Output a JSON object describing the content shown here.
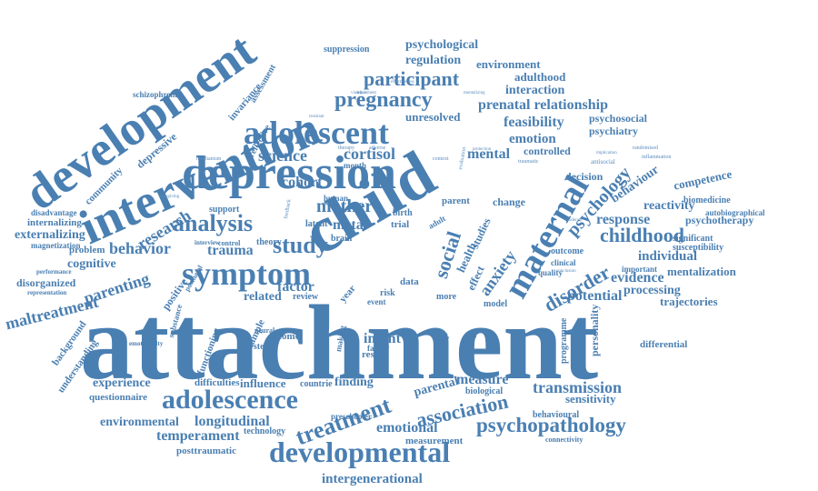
{
  "cloud": {
    "color": "#4a7fb2",
    "words": {
      "attachment": "attachment",
      "development": "development",
      "intervention": "intervention",
      "depression": "depression",
      "adolescent": "adolescent",
      "child": "child",
      "maternal": "maternal",
      "symptom": "symptom",
      "analysis": "analysis",
      "adolescence": "adolescence",
      "developmental": "developmental",
      "psychopathology": "psychopathology",
      "treatment": "treatment",
      "association": "association",
      "study": "study",
      "pregnancy": "pregnancy",
      "participant": "participant",
      "childhood": "childhood",
      "psychology": "psychology",
      "disorder": "disorder",
      "social": "social",
      "anxiety": "anxiety",
      "parenting": "parenting",
      "maltreatment": "maltreatment",
      "behavior": "behavior",
      "research": "research",
      "mother": "mother",
      "cortisol": "cortisol",
      "science": "science",
      "feasibility": "feasibility",
      "emotion": "emotion",
      "mental": "mental",
      "prenatal_relationship": "prenatal relationship",
      "psychological": "psychological",
      "regulation": "regulation",
      "environment": "environment",
      "adulthood": "adulthood",
      "interaction": "interaction",
      "unresolved": "unresolved",
      "trauma": "trauma",
      "cohort": "cohort",
      "meta": "meta",
      "factor": "factor",
      "related": "related",
      "infant": "infant",
      "transmission": "transmission",
      "measure": "measure",
      "sensitivity": "sensitivity",
      "potential": "potential",
      "evidence": "evidence",
      "processing": "processing",
      "individual": "individual",
      "mentalization": "mentalization",
      "response": "response",
      "reactivity": "reactivity",
      "competence": "competence",
      "behaviour": "behaviour",
      "psychotherapy": "psychotherapy",
      "longitudinal": "longitudinal",
      "temperament": "temperament",
      "emotional": "emotional",
      "intergenerational": "intergenerational",
      "environmental": "environmental",
      "experience": "experience",
      "questionnaire": "questionnaire",
      "cognitive": "cognitive",
      "externalizing": "externalizing",
      "internalizing": "internalizing",
      "disorganized": "disorganized",
      "problem": "problem",
      "parental": "parental",
      "finding": "finding",
      "measurement": "measurement",
      "posttraumatic": "posttraumatic",
      "psychosocial": "psychosocial",
      "psychiatry": "psychiatry",
      "controlled": "controlled",
      "decision": "decision",
      "depressive": "depressive",
      "community": "community",
      "invariance": "invariance",
      "assessment": "assessment",
      "suppression": "suppression",
      "schizophrenia": "schizophrenia",
      "biomedicine": "biomedicine",
      "autobiographical": "autobiographical",
      "significant": "significant",
      "susceptibility": "susceptibility",
      "trajectories": "trajectories",
      "differential": "differential",
      "personality": "personality",
      "influence": "influence",
      "difficulties": "difficulties",
      "income": "income",
      "system": "system",
      "change": "change",
      "parent": "parent",
      "review": "review",
      "data": "data",
      "risk": "risk",
      "health": "health",
      "studies": "studies",
      "effect": "effect",
      "outcome": "outcome",
      "quality": "quality",
      "important": "important",
      "reflective": "reflective",
      "support": "support",
      "theory": "theory",
      "latent": "latent",
      "brain": "brain",
      "countrie": "countrie",
      "technology": "technology",
      "result": "result",
      "family": "family",
      "antenatal": "antenatal",
      "programme": "programme",
      "validity": "validity",
      "group": "group",
      "biological": "biological",
      "behavioural": "behavioural",
      "preschooler": "preschooler",
      "connectivity": "connectivity",
      "functioning": "functioning",
      "positive": "positive",
      "sample": "sample",
      "substance": "substance",
      "emotionality": "emotionality",
      "magnetization": "magnetization",
      "disadvantage": "disadvantage",
      "performance": "performance",
      "representation": "representation",
      "background": "background",
      "understanding": "understanding",
      "postnatal": "postnatal",
      "year": "year",
      "model": "model",
      "making": "making",
      "clinical": "clinical",
      "more": "more",
      "event": "event",
      "trial": "trial",
      "birth": "birth",
      "adult": "adult",
      "human": "human",
      "month": "month",
      "interview": "interview",
      "control": "control",
      "neural": "neural",
      "mechanism": "mechanism",
      "violence": "violence",
      "adjustment": "adjustment",
      "protection": "protection",
      "mentalizing": "mentalizing",
      "implication": "implication",
      "antisocial": "antisocial",
      "randomised": "randomised",
      "inflammation": "inflammation",
      "traumatic": "traumatic",
      "adverse": "adverse",
      "context": "context",
      "therapy": "therapy",
      "resistant": "resistant",
      "effectiveness": "effectiveness",
      "moderate": "moderate",
      "conclusion": "conclusion",
      "feedback": "feedback",
      "caregiving": "caregiving",
      "evaluation": "evaluation"
    }
  }
}
